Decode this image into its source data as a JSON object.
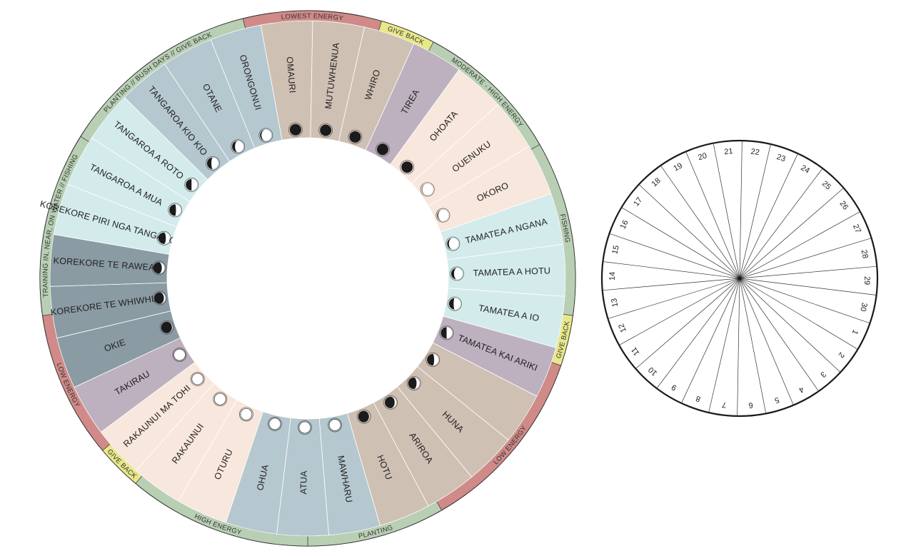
{
  "colors": {
    "ring_green": "#b8cfb4",
    "ring_red": "#d08a88",
    "ring_yellow": "#e8e88a",
    "tan": "#cfc0b4",
    "steel_blue": "#b5c7cf",
    "light_teal": "#d4ebec",
    "peach": "#f8e7dc",
    "mauve": "#bdb1bf",
    "slate": "#8a9ba3",
    "moon_dark": "#1b1b1b"
  },
  "nights": [
    {
      "name": "OMAURI",
      "color": "tan",
      "phase": 0.0
    },
    {
      "name": "MUTUWHENUA",
      "color": "tan",
      "phase": 0.0
    },
    {
      "name": "WHIRO",
      "color": "tan",
      "phase": 0.0
    },
    {
      "name": "TIREA",
      "color": "mauve",
      "phase": 0.0
    },
    {
      "name": "OHOATA",
      "color": "peach",
      "phase": 0.0
    },
    {
      "name": "OUENUKU",
      "color": "peach",
      "phase": 0.04
    },
    {
      "name": "OKORO",
      "color": "peach",
      "phase": 0.08
    },
    {
      "name": "TAMATEA A NGANA",
      "color": "light_teal",
      "phase": 0.15
    },
    {
      "name": "TAMATEA A HOTU",
      "color": "light_teal",
      "phase": 0.25
    },
    {
      "name": "TAMATEA A IO",
      "color": "light_teal",
      "phase": 0.4
    },
    {
      "name": "TAMATEA KAI ARIKI",
      "color": "mauve",
      "phase": 0.5
    },
    {
      "name": "",
      "color": "tan",
      "phase": 0.62
    },
    {
      "name": "HUNA",
      "color": "tan",
      "phase": 0.74
    },
    {
      "name": "ARIROA",
      "color": "tan",
      "phase": 0.86
    },
    {
      "name": "HOTU",
      "color": "tan",
      "phase": 0.95
    },
    {
      "name": "MAWHARU",
      "color": "steel_blue",
      "phase": 1.0
    },
    {
      "name": "ATUA",
      "color": "steel_blue",
      "phase": 1.0
    },
    {
      "name": "OHUA",
      "color": "steel_blue",
      "phase": 1.0
    },
    {
      "name": "OTURU",
      "color": "peach",
      "phase": 1.0
    },
    {
      "name": "RAKAUNUI",
      "color": "peach",
      "phase": 1.0
    },
    {
      "name": "RAKAUNUI MA TOHI",
      "color": "peach",
      "phase": 1.0
    },
    {
      "name": "TAKIRAU",
      "color": "mauve",
      "phase": 1.0
    },
    {
      "name": "OKIE",
      "color": "slate",
      "phase": 0.95
    },
    {
      "name": "KOREKORE TE WHIWHIA",
      "color": "slate",
      "phase": 0.86
    },
    {
      "name": "KOREKORE TE RAWEA",
      "color": "slate",
      "phase": 0.76
    },
    {
      "name": "KOREKORE PIRI NGA TANGAROA",
      "color": "light_teal",
      "phase": 0.66
    },
    {
      "name": "TANGAROA A MUA",
      "color": "light_teal",
      "phase": 0.58
    },
    {
      "name": "TANGAROA A ROTO",
      "color": "light_teal",
      "phase": 0.5
    },
    {
      "name": "TANGAROA KIO KIO",
      "color": "steel_blue",
      "phase": 0.38
    },
    {
      "name": "OTANE",
      "color": "steel_blue",
      "phase": 0.25
    },
    {
      "name": "ORONGONUI",
      "color": "steel_blue",
      "phase": 0.12
    }
  ],
  "bands": [
    {
      "label": "LOWEST ENERGY",
      "color": "ring_red",
      "start": -14,
      "end": 16
    },
    {
      "label": "GIVE BACK",
      "color": "ring_yellow",
      "start": 16,
      "end": 28
    },
    {
      "label": "MODERATE - HIGH ENERGY",
      "color": "ring_green",
      "start": 28,
      "end": 60
    },
    {
      "label": "FISHING",
      "color": "ring_green",
      "start": 60,
      "end": 98
    },
    {
      "label": "GIVE BACK",
      "color": "ring_yellow",
      "start": 98,
      "end": 109
    },
    {
      "label": "LOW ENERGY",
      "color": "ring_red",
      "start": 109,
      "end": 150
    },
    {
      "label": "PLANTING",
      "color": "ring_green",
      "start": 150,
      "end": 180
    },
    {
      "label": "HIGH ENERGY",
      "color": "ring_green",
      "start": 180,
      "end": 220
    },
    {
      "label": "GIVE BACK",
      "color": "ring_yellow",
      "start": 220,
      "end": 230
    },
    {
      "label": "LOW ENERGY",
      "color": "ring_red",
      "start": 230,
      "end": 262
    },
    {
      "label": "TRAINING IN, NEAR, ON WATER // FISHING",
      "color": "ring_green",
      "start": 262,
      "end": 302
    },
    {
      "label": "PLANTING // BUSH DAYS // GIVE BACK",
      "color": "ring_green",
      "start": 302,
      "end": 346
    }
  ],
  "day_dial": {
    "numbers": [
      "1",
      "2",
      "3",
      "4",
      "5",
      "6",
      "7",
      "8",
      "9",
      "10",
      "11",
      "12",
      "13",
      "14",
      "15",
      "16",
      "17",
      "18",
      "19",
      "20",
      "21",
      "22",
      "23",
      "24",
      "25",
      "26",
      "27",
      "28",
      "29",
      "30"
    ]
  }
}
